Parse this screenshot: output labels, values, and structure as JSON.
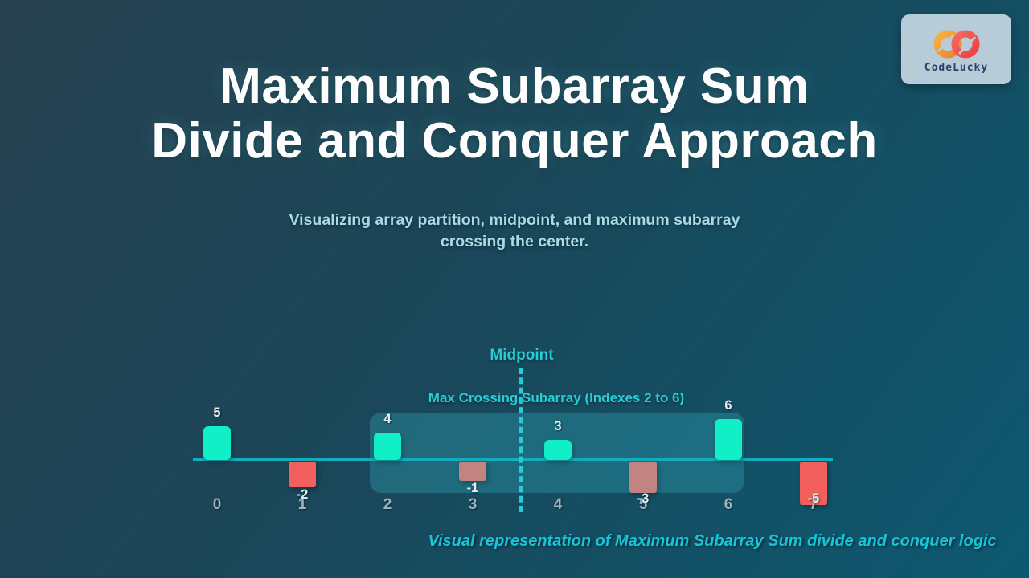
{
  "header": {
    "title_line1": "Maximum Subarray Sum",
    "title_line2": "Divide and Conquer Approach",
    "subtitle_line1": "Visualizing array partition, midpoint, and maximum subarray",
    "subtitle_line2": "crossing the center."
  },
  "logo": {
    "text": "CodeLucky"
  },
  "chart_data": {
    "type": "bar",
    "title": "",
    "categories": [
      "0",
      "1",
      "2",
      "3",
      "4",
      "5",
      "6",
      "7"
    ],
    "values": [
      5,
      -2,
      4,
      -1,
      3,
      -3,
      6,
      -5
    ],
    "baseline": 0,
    "grid": false,
    "legend": false,
    "annotations": {
      "midpoint_label": "Midpoint",
      "midpoint_between_indexes": [
        3,
        4
      ],
      "crossing_label": "Max Crossing Subarray (Indexes 2 to 6)",
      "crossing_index_range": [
        2,
        6
      ]
    },
    "colors": {
      "positive_bar": "#10efc6",
      "negative_bar": "#f2605e",
      "negative_bar_in_crossing": "#c18480",
      "axis_line": "#12aebe",
      "midpoint_accent": "#27ccd6",
      "crossing_box_fill": "rgba(42,147,164,0.45)",
      "value_label": "#e6edf2",
      "index_label": "#9db3c0"
    }
  },
  "footer": {
    "caption": "Visual representation of Maximum Subarray Sum divide and conquer logic"
  }
}
